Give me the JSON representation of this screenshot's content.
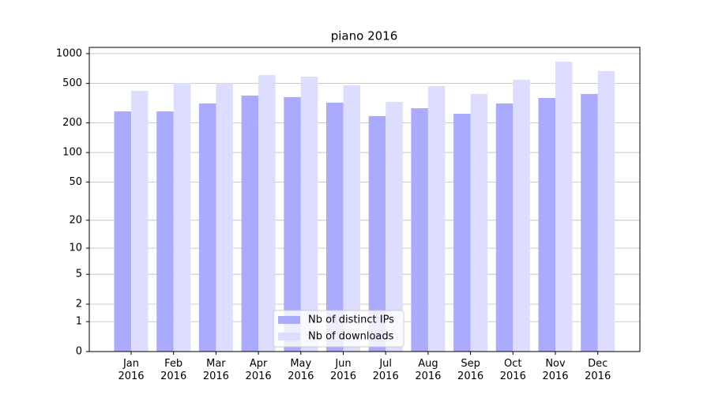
{
  "chart_data": {
    "type": "bar",
    "title": "piano 2016",
    "categories": [
      "Jan\n2016",
      "Feb\n2016",
      "Mar\n2016",
      "Apr\n2016",
      "May\n2016",
      "Jun\n2016",
      "Jul\n2016",
      "Aug\n2016",
      "Sep\n2016",
      "Oct\n2016",
      "Nov\n2016",
      "Dec\n2016"
    ],
    "series": [
      {
        "name": "Nb of distinct IPs",
        "color": "#aaaaff",
        "values": [
          261,
          261,
          314,
          377,
          364,
          320,
          234,
          281,
          247,
          314,
          357,
          392
        ]
      },
      {
        "name": "Nb of downloads",
        "color": "#ddddff",
        "values": [
          422,
          506,
          500,
          608,
          586,
          479,
          326,
          470,
          392,
          545,
          831,
          667
        ]
      }
    ],
    "ylim": [
      0,
      1155
    ],
    "yticks": [
      0,
      1,
      2,
      5,
      10,
      20,
      50,
      100,
      200,
      500,
      1000
    ],
    "yscale": "log1p",
    "grid": true,
    "legend": "lower center"
  }
}
